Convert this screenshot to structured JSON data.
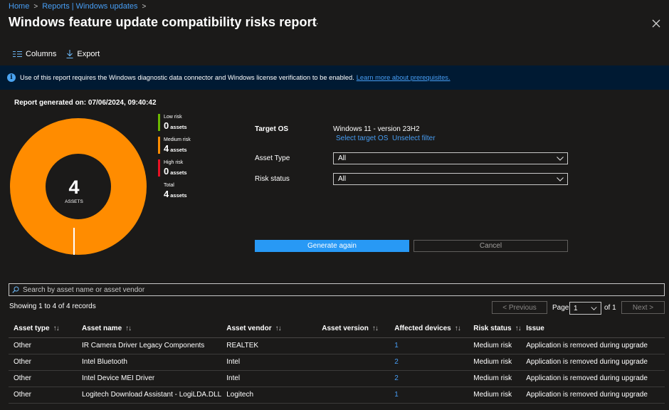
{
  "breadcrumb": [
    "Home",
    "Reports | Windows updates"
  ],
  "title": "Windows feature update compatibility risks report",
  "more_label": "···",
  "toolbar": {
    "columns": "Columns",
    "export": "Export"
  },
  "banner": {
    "text": "Use of this report requires the Windows diagnostic data connector and Windows license verification to be enabled.",
    "link": "Learn more about prerequisites."
  },
  "report_generated": "Report generated on: 07/06/2024, 09:40:42",
  "donut": {
    "total": "4",
    "label": "ASSETS",
    "medium_fraction": 1.0
  },
  "legend": [
    {
      "label": "Low risk",
      "value": "0",
      "unit": "assets",
      "color": "#6bb700"
    },
    {
      "label": "Medium risk",
      "value": "4",
      "unit": "assets",
      "color": "#ff8c00"
    },
    {
      "label": "High risk",
      "value": "0",
      "unit": "assets",
      "color": "#e81123"
    },
    {
      "label": "Total",
      "value": "4",
      "unit": "assets",
      "color": ""
    }
  ],
  "form": {
    "target_os_label": "Target OS",
    "target_os_value": "Windows 11 - version 23H2",
    "select_target": "Select target OS",
    "unselect": "Unselect filter",
    "asset_type_label": "Asset Type",
    "asset_type_value": "All",
    "risk_status_label": "Risk status",
    "risk_status_value": "All",
    "generate": "Generate again",
    "cancel": "Cancel"
  },
  "search_placeholder": "Search by asset name or asset vendor",
  "showing": "Showing 1 to 4 of 4 records",
  "pager": {
    "previous": "< Previous",
    "page_label": "Page",
    "page_value": "1",
    "of": "of 1",
    "next": "Next >"
  },
  "table": {
    "headers": [
      "Asset type",
      "Asset name",
      "Asset vendor",
      "Asset version",
      "Affected devices",
      "Risk status",
      "Issue"
    ],
    "rows": [
      [
        "Other",
        "IR Camera Driver Legacy Components",
        "REALTEK",
        "",
        "1",
        "Medium risk",
        "Application is removed during upgrade"
      ],
      [
        "Other",
        "Intel Bluetooth",
        "Intel",
        "",
        "2",
        "Medium risk",
        "Application is removed during upgrade"
      ],
      [
        "Other",
        "Intel Device MEI Driver",
        "Intel",
        "",
        "2",
        "Medium risk",
        "Application is removed during upgrade"
      ],
      [
        "Other",
        "Logitech Download Assistant - LogiLDA.DLL",
        "Logitech",
        "",
        "1",
        "Medium risk",
        "Application is removed during upgrade"
      ]
    ]
  }
}
